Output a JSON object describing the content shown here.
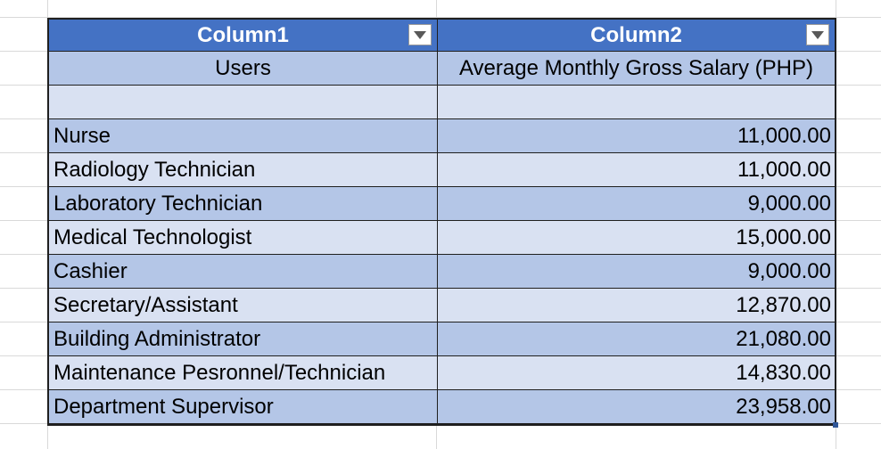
{
  "table": {
    "headers": [
      {
        "label": "Column1",
        "filter_icon": "chevron-down-icon"
      },
      {
        "label": "Column2",
        "filter_icon": "chevron-down-icon"
      }
    ],
    "subheader": {
      "col1": "Users",
      "col2": "Average Monthly Gross Salary (PHP)"
    },
    "rows": [
      {
        "user": "Nurse",
        "salary": "11,000.00"
      },
      {
        "user": "Radiology Technician",
        "salary": "11,000.00"
      },
      {
        "user": "Laboratory Technician",
        "salary": "9,000.00"
      },
      {
        "user": "Medical Technologist",
        "salary": "15,000.00"
      },
      {
        "user": "Cashier",
        "salary": "9,000.00"
      },
      {
        "user": "Secretary/Assistant",
        "salary": "12,870.00"
      },
      {
        "user": "Building Administrator",
        "salary": "21,080.00"
      },
      {
        "user": "Maintenance Pesronnel/Technician",
        "salary": "14,830.00"
      },
      {
        "user": "Department Supervisor",
        "salary": "23,958.00"
      }
    ]
  },
  "colors": {
    "header_bg": "#4472c4",
    "band_dark": "#b4c6e7",
    "band_light": "#d9e1f2",
    "gridline": "#d9d9d9"
  }
}
